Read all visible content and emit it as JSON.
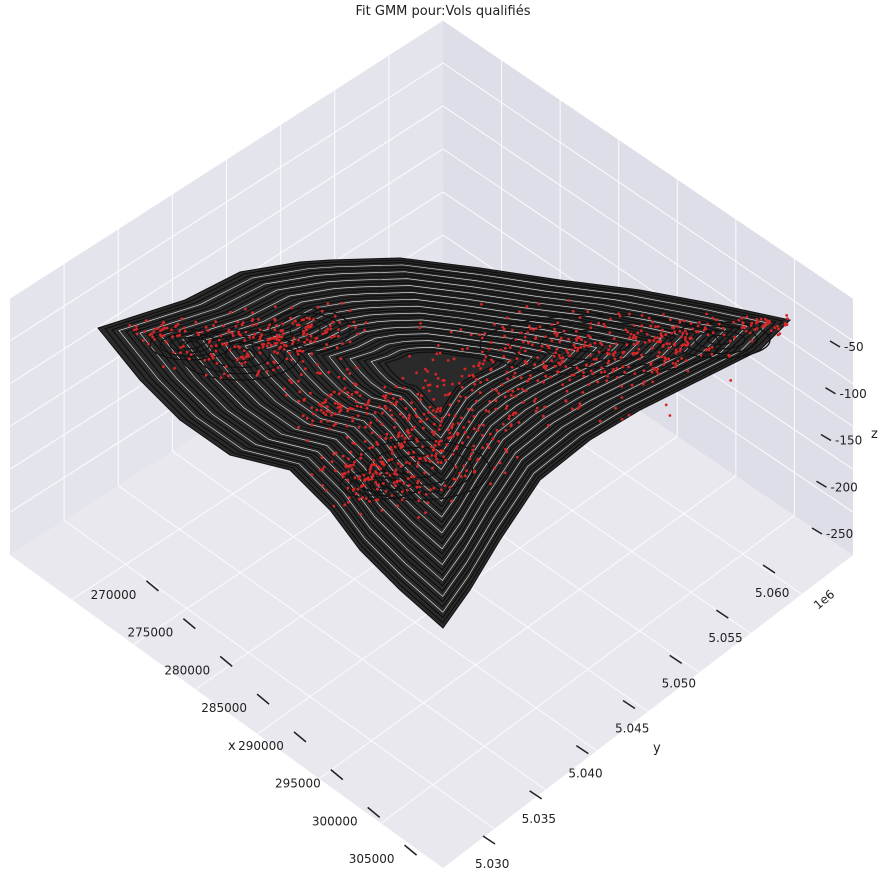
{
  "chart_data": {
    "type": "scatter",
    "projection": "3d",
    "title": "Fit GMM pour:Vols qualifiés",
    "xlabel": "x",
    "ylabel": "y",
    "zlabel": "z",
    "x_ticks": [
      "270000",
      "275000",
      "280000",
      "285000",
      "290000",
      "295000",
      "300000",
      "305000"
    ],
    "y_ticks": [
      "5.030",
      "5.035",
      "5.040",
      "5.045",
      "5.050",
      "5.055",
      "5.060"
    ],
    "y_offset": "1e6",
    "z_ticks": [
      "-50",
      "-100",
      "-150",
      "-200",
      "-250"
    ],
    "xlim": [
      267000,
      307000
    ],
    "ylim": [
      5028000,
      5063000
    ],
    "zlim": [
      -275,
      -25
    ],
    "grid": true,
    "background": "#eaeaf2",
    "series": [
      {
        "kind": "contour",
        "color": "#1a1a1a"
      },
      {
        "kind": "points",
        "color": "#d62728"
      }
    ]
  }
}
